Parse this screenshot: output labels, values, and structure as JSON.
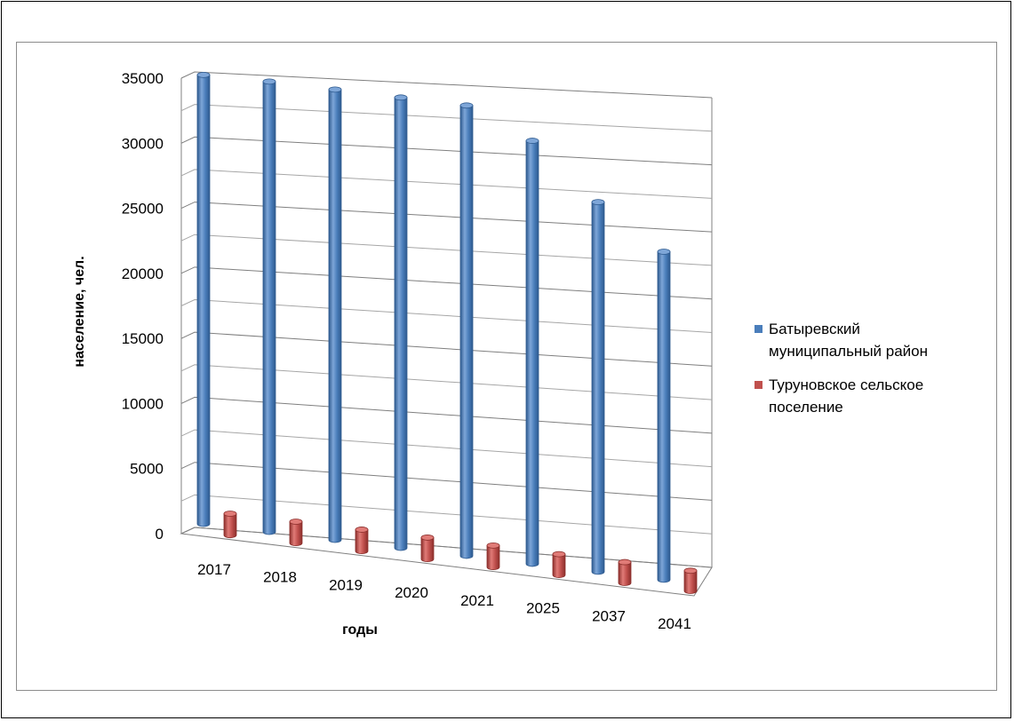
{
  "chart_data": {
    "type": "bar",
    "variant": "3d-cylinder",
    "xlabel": "годы",
    "ylabel": "население, чел.",
    "ylim": [
      0,
      35000
    ],
    "y_ticks": [
      "0",
      "5000",
      "10000",
      "15000",
      "20000",
      "25000",
      "30000",
      "35000"
    ],
    "categories": [
      "2017",
      "2018",
      "2019",
      "2020",
      "2021",
      "2025",
      "2037",
      "2041"
    ],
    "grid": true,
    "legend_position": "right",
    "series": [
      {
        "name": "Батыревский муниципальный район",
        "legend_lines": [
          "Батыревский",
          "муниципальный район"
        ],
        "color": "#4a7ebb",
        "values": [
          34500,
          34600,
          34600,
          34600,
          34600,
          32500,
          28400,
          25200
        ]
      },
      {
        "name": "Туруновское сельское поселение",
        "legend_lines": [
          "Туруновское сельское",
          "поселение"
        ],
        "color": "#c0504d",
        "values": [
          1650,
          1650,
          1650,
          1650,
          1650,
          1600,
          1600,
          1550
        ]
      }
    ]
  }
}
